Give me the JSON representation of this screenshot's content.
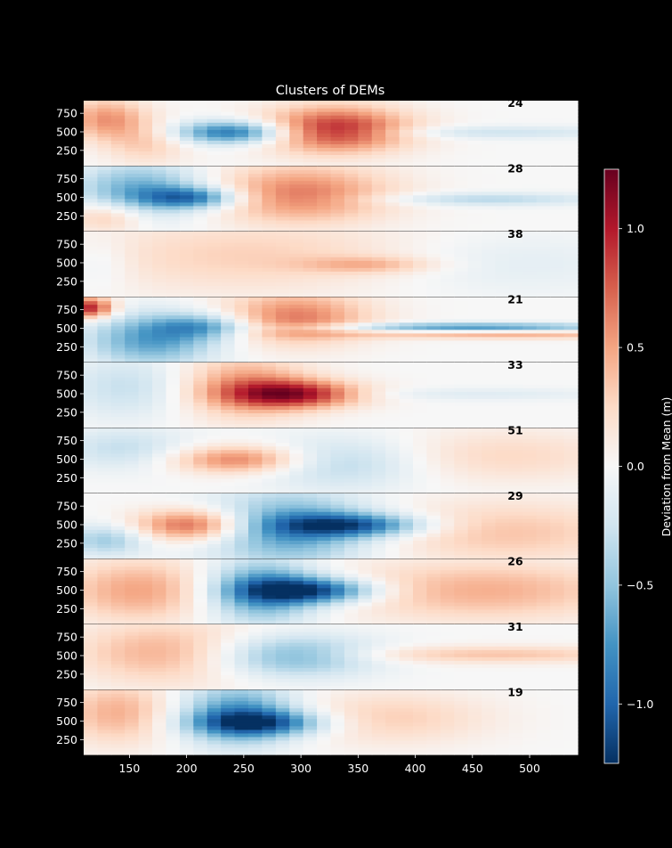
{
  "chart_data": {
    "type": "heatmap",
    "title": "Clusters of DEMs",
    "xlabel": "",
    "ylabel": "",
    "xlim": [
      110,
      542
    ],
    "ylim": [
      50,
      920
    ],
    "x_ticks": [
      150,
      200,
      250,
      300,
      350,
      400,
      450,
      500
    ],
    "y_ticks": [
      250,
      500,
      750
    ],
    "colorbar": {
      "label": "Deviation from Mean (m)",
      "range": [
        -1.25,
        1.25
      ],
      "ticks": [
        -1.0,
        -0.5,
        0.0,
        0.5,
        1.0
      ],
      "tick_labels": [
        "−1.0",
        "−0.5",
        "0.0",
        "0.5",
        "1.0"
      ],
      "colormap": "RdBu_r"
    },
    "panels": [
      {
        "count": "24",
        "features": [
          {
            "x": 130,
            "y": 680,
            "a": 0.55,
            "sx": 25,
            "sy": 200
          },
          {
            "x": 240,
            "y": 500,
            "a": -0.95,
            "sx": 35,
            "sy": 110
          },
          {
            "x": 330,
            "y": 540,
            "a": 0.95,
            "sx": 45,
            "sy": 220
          },
          {
            "x": 470,
            "y": 500,
            "a": -0.25,
            "sx": 80,
            "sy": 60
          },
          {
            "x": 165,
            "y": 350,
            "a": 0.3,
            "sx": 25,
            "sy": 200
          }
        ]
      },
      {
        "count": "28",
        "features": [
          {
            "x": 160,
            "y": 600,
            "a": -0.65,
            "sx": 40,
            "sy": 260
          },
          {
            "x": 205,
            "y": 500,
            "a": -0.8,
            "sx": 30,
            "sy": 100
          },
          {
            "x": 130,
            "y": 250,
            "a": 0.4,
            "sx": 25,
            "sy": 150
          },
          {
            "x": 300,
            "y": 550,
            "a": 0.65,
            "sx": 55,
            "sy": 280
          },
          {
            "x": 460,
            "y": 480,
            "a": -0.35,
            "sx": 70,
            "sy": 60
          }
        ]
      },
      {
        "count": "38",
        "features": [
          {
            "x": 260,
            "y": 600,
            "a": 0.3,
            "sx": 110,
            "sy": 350
          },
          {
            "x": 360,
            "y": 480,
            "a": 0.35,
            "sx": 40,
            "sy": 80
          },
          {
            "x": 470,
            "y": 500,
            "a": -0.15,
            "sx": 90,
            "sy": 300
          },
          {
            "x": 125,
            "y": 500,
            "a": -0.15,
            "sx": 20,
            "sy": 250
          }
        ]
      },
      {
        "count": "21",
        "features": [
          {
            "x": 115,
            "y": 780,
            "a": 1.0,
            "sx": 15,
            "sy": 100
          },
          {
            "x": 170,
            "y": 350,
            "a": -0.7,
            "sx": 40,
            "sy": 250
          },
          {
            "x": 215,
            "y": 530,
            "a": -0.55,
            "sx": 30,
            "sy": 120
          },
          {
            "x": 295,
            "y": 650,
            "a": 0.65,
            "sx": 45,
            "sy": 250
          },
          {
            "x": 450,
            "y": 520,
            "a": -0.75,
            "sx": 90,
            "sy": 40
          },
          {
            "x": 480,
            "y": 420,
            "a": 0.45,
            "sx": 100,
            "sy": 40
          }
        ]
      },
      {
        "count": "33",
        "features": [
          {
            "x": 150,
            "y": 600,
            "a": -0.3,
            "sx": 40,
            "sy": 300
          },
          {
            "x": 250,
            "y": 600,
            "a": 0.55,
            "sx": 40,
            "sy": 300
          },
          {
            "x": 295,
            "y": 500,
            "a": 0.95,
            "sx": 40,
            "sy": 130
          },
          {
            "x": 460,
            "y": 500,
            "a": -0.15,
            "sx": 80,
            "sy": 60
          }
        ]
      },
      {
        "count": "51",
        "features": [
          {
            "x": 145,
            "y": 650,
            "a": -0.3,
            "sx": 40,
            "sy": 200
          },
          {
            "x": 245,
            "y": 500,
            "a": 0.65,
            "sx": 40,
            "sy": 130
          },
          {
            "x": 335,
            "y": 450,
            "a": -0.35,
            "sx": 50,
            "sy": 250
          },
          {
            "x": 480,
            "y": 550,
            "a": 0.25,
            "sx": 70,
            "sy": 250
          }
        ]
      },
      {
        "count": "29",
        "features": [
          {
            "x": 130,
            "y": 300,
            "a": -0.45,
            "sx": 25,
            "sy": 150
          },
          {
            "x": 205,
            "y": 500,
            "a": 0.8,
            "sx": 35,
            "sy": 150
          },
          {
            "x": 290,
            "y": 450,
            "a": -0.75,
            "sx": 50,
            "sy": 350
          },
          {
            "x": 345,
            "y": 500,
            "a": -0.9,
            "sx": 45,
            "sy": 110
          },
          {
            "x": 480,
            "y": 400,
            "a": 0.35,
            "sx": 80,
            "sy": 300
          }
        ]
      },
      {
        "count": "26",
        "features": [
          {
            "x": 160,
            "y": 500,
            "a": 0.5,
            "sx": 50,
            "sy": 300
          },
          {
            "x": 265,
            "y": 500,
            "a": -0.85,
            "sx": 35,
            "sy": 300
          },
          {
            "x": 310,
            "y": 500,
            "a": -1.05,
            "sx": 40,
            "sy": 120
          },
          {
            "x": 460,
            "y": 500,
            "a": 0.45,
            "sx": 90,
            "sy": 280
          }
        ]
      },
      {
        "count": "31",
        "features": [
          {
            "x": 180,
            "y": 550,
            "a": 0.45,
            "sx": 55,
            "sy": 300
          },
          {
            "x": 290,
            "y": 500,
            "a": -0.6,
            "sx": 50,
            "sy": 200
          },
          {
            "x": 470,
            "y": 520,
            "a": 0.35,
            "sx": 90,
            "sy": 80
          }
        ]
      },
      {
        "count": "19",
        "features": [
          {
            "x": 140,
            "y": 620,
            "a": 0.45,
            "sx": 35,
            "sy": 300
          },
          {
            "x": 245,
            "y": 600,
            "a": -0.75,
            "sx": 35,
            "sy": 300
          },
          {
            "x": 265,
            "y": 480,
            "a": -0.85,
            "sx": 40,
            "sy": 120
          },
          {
            "x": 380,
            "y": 550,
            "a": 0.3,
            "sx": 60,
            "sy": 250
          }
        ]
      }
    ]
  }
}
